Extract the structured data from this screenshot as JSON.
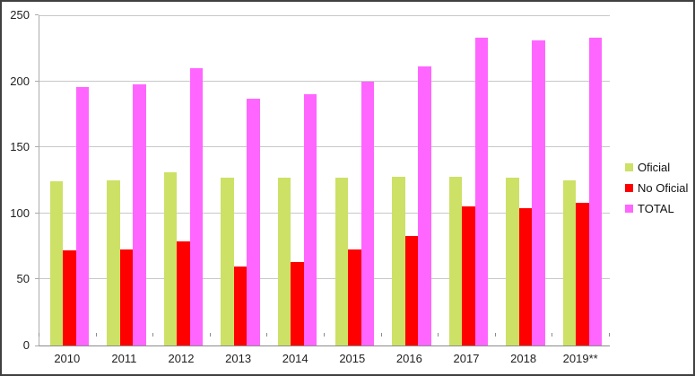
{
  "chart_data": {
    "type": "bar",
    "title": "",
    "xlabel": "",
    "ylabel": "",
    "categories": [
      "2010",
      "2011",
      "2012",
      "2013",
      "2014",
      "2015",
      "2016",
      "2017",
      "2018",
      "2019**"
    ],
    "series": [
      {
        "name": "Oficial",
        "color": "#CCE166",
        "values": [
          124,
          125,
          131,
          127,
          127,
          127,
          128,
          128,
          127,
          125
        ]
      },
      {
        "name": "No Oficial",
        "color": "#FF0000",
        "values": [
          72,
          73,
          79,
          60,
          63,
          73,
          83,
          105,
          104,
          108
        ]
      },
      {
        "name": "TOTAL",
        "color": "#FF66FF",
        "values": [
          196,
          198,
          210,
          187,
          190,
          200,
          211,
          233,
          231,
          233
        ]
      }
    ],
    "ylim": [
      0,
      250
    ],
    "yticks": [
      0,
      50,
      100,
      150,
      200,
      250
    ],
    "grid": true,
    "legend_position": "right"
  },
  "colors": {
    "gridline": "#C8C8C8",
    "y_axis": "#ABABAB",
    "x_axis": "#8C8C8C",
    "frame_border": "#404040",
    "tick_text": "#1F1F1F"
  }
}
